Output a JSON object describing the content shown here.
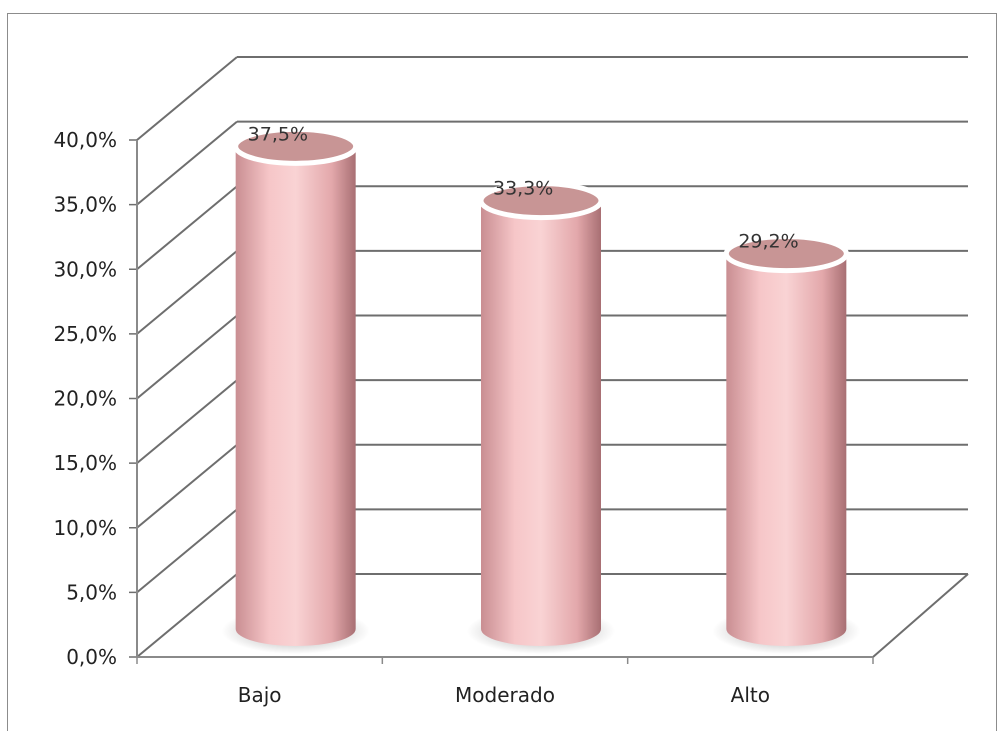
{
  "chart_data": {
    "type": "bar",
    "style": "3d-cylinder",
    "categories": [
      "Bajo",
      "Moderado",
      "Alto"
    ],
    "values": [
      37.5,
      33.3,
      29.2
    ],
    "data_labels": [
      "37,5%",
      "33,3%",
      "29,2%"
    ],
    "y_ticks": [
      "0,0%",
      "5,0%",
      "10,0%",
      "15,0%",
      "20,0%",
      "25,0%",
      "30,0%",
      "35,0%",
      "40,0%"
    ],
    "ylim": [
      0,
      40
    ],
    "grid": true,
    "legend": "none",
    "colors": {
      "bar": "#e8a5a9",
      "bar_light": "#f8cfd1",
      "bar_top": "#c89595",
      "grid": "#6e6e6e"
    }
  }
}
